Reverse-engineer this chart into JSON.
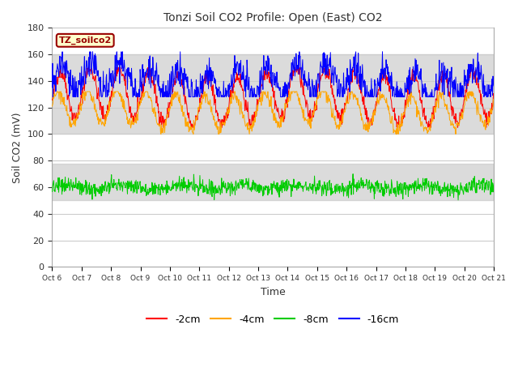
{
  "title": "Tonzi Soil CO2 Profile: Open (East) CO2",
  "xlabel": "Time",
  "ylabel": "Soil CO2 (mV)",
  "ylim": [
    0,
    180
  ],
  "yticks": [
    0,
    20,
    40,
    60,
    80,
    100,
    120,
    140,
    160,
    180
  ],
  "x_labels": [
    "Oct 6",
    "Oct 7",
    "Oct 8",
    "Oct 9",
    "Oct 10",
    "Oct 11",
    "Oct 12",
    "Oct 13",
    "Oct 14",
    "Oct 15",
    "Oct 16",
    "Oct 17",
    "Oct 18",
    "Oct 19",
    "Oct 20",
    "Oct 21"
  ],
  "colors": {
    "red": "#ff0000",
    "orange": "#ffa500",
    "green": "#00cc00",
    "blue": "#0000ff"
  },
  "legend_labels": [
    "-2cm",
    "-4cm",
    "-8cm",
    "-16cm"
  ],
  "annotation_label": "TZ_soilco2",
  "annotation_bg": "#ffffcc",
  "annotation_border": "#990000",
  "shaded_upper": {
    "ymin": 100,
    "ymax": 160,
    "color": "#cccccc",
    "alpha": 0.7
  },
  "shaded_lower": {
    "ymin": 50,
    "ymax": 78,
    "color": "#cccccc",
    "alpha": 0.7
  },
  "bg_color": "#ffffff",
  "plot_bg_color": "#ffffff",
  "grid_color": "#cccccc",
  "n_days": 15,
  "n_points_per_day": 72,
  "seed": 42
}
